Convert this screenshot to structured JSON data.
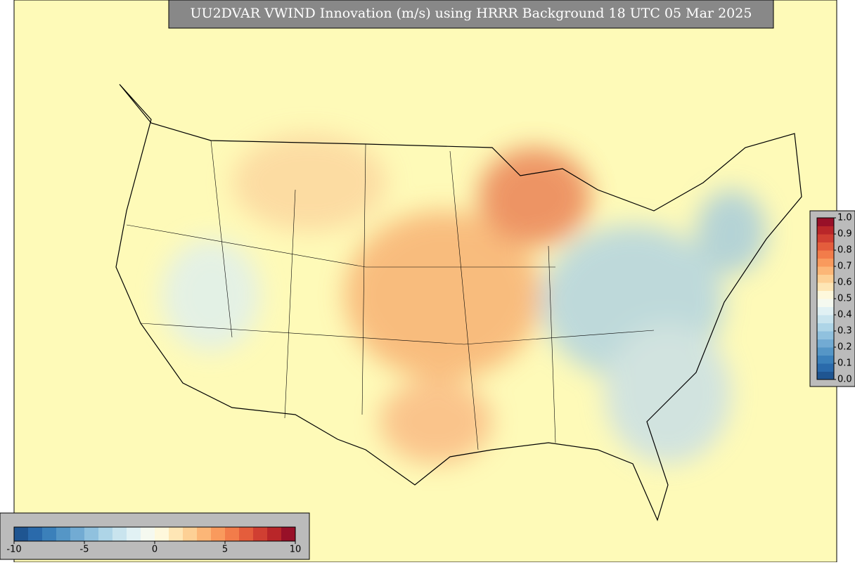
{
  "title": "UU2DVAR VWIND Innovation (m/s) using HRRR Background 18 UTC 05 Mar 2025",
  "colormap": [
    "#1f5591",
    "#2a6aab",
    "#3b80ba",
    "#5596c6",
    "#72abd3",
    "#90c1de",
    "#aed5e7",
    "#c9e4ee",
    "#e1f1f4",
    "#f5f9f0",
    "#fef8dc",
    "#fee6b5",
    "#fdd095",
    "#fcb677",
    "#f99a5d",
    "#f27c4a",
    "#e45d3c",
    "#d03f32",
    "#b92629",
    "#981028"
  ],
  "colorbar_bottom": {
    "range": [
      -10,
      10
    ],
    "ticks": [
      -10,
      -5,
      0,
      5,
      10
    ]
  },
  "colorbar_right": {
    "range": [
      0,
      1
    ],
    "ticks": [
      {
        "value": 0,
        "label": "0.0"
      },
      0.1,
      0.2,
      0.3,
      0.4,
      0.5,
      0.6,
      0.7,
      0.8,
      0.9,
      {
        "value": 1,
        "label": "1.0"
      }
    ]
  }
}
